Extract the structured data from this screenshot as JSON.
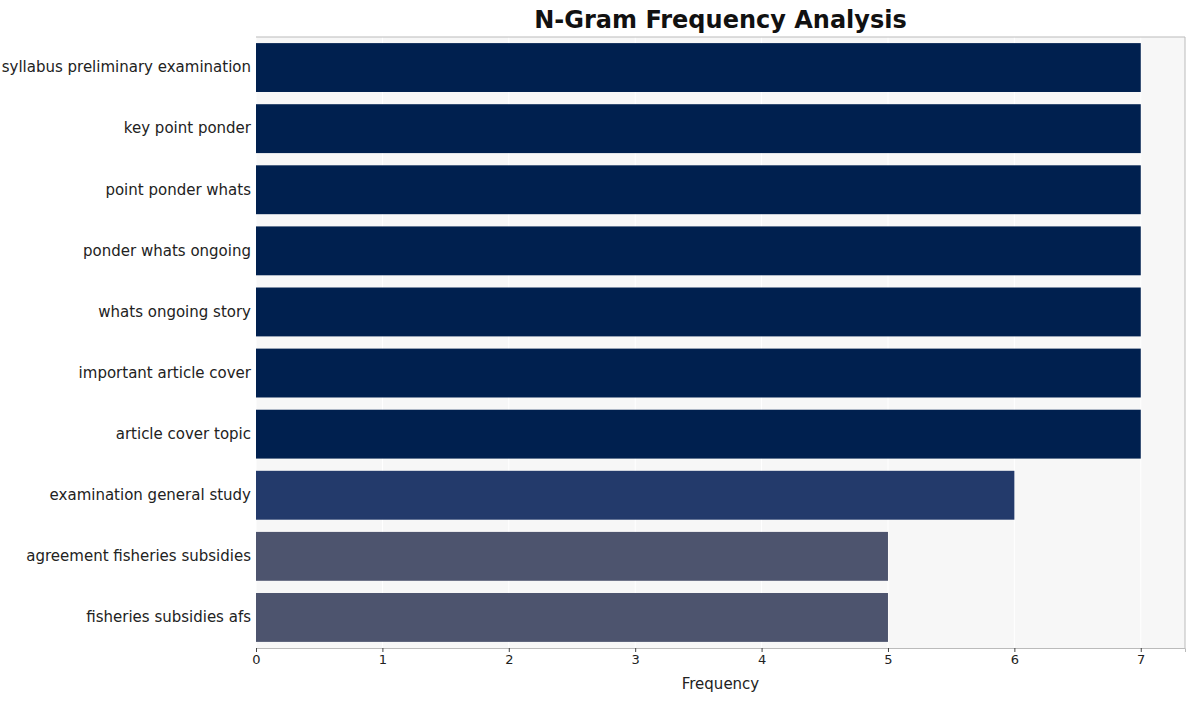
{
  "chart_data": {
    "type": "bar",
    "title": "N-Gram Frequency Analysis",
    "x_label": "Frequency",
    "orientation": "horizontal",
    "categories": [
      "syllabus preliminary examination",
      "key point ponder",
      "point ponder whats",
      "ponder whats ongoing",
      "whats ongoing story",
      "important article cover",
      "article cover topic",
      "examination general study",
      "agreement fisheries subsidies",
      "fisheries subsidies afs"
    ],
    "values": [
      7,
      7,
      7,
      7,
      7,
      7,
      7,
      6,
      5,
      5
    ],
    "colors": [
      "#00204f",
      "#00204f",
      "#00204f",
      "#00204f",
      "#00204f",
      "#00204f",
      "#00204f",
      "#233a6b",
      "#4d546e",
      "#4d546e"
    ],
    "xlim": [
      0,
      7.35
    ],
    "xticks": [
      0,
      1,
      2,
      3,
      4,
      5,
      6,
      7
    ],
    "grid": true
  }
}
